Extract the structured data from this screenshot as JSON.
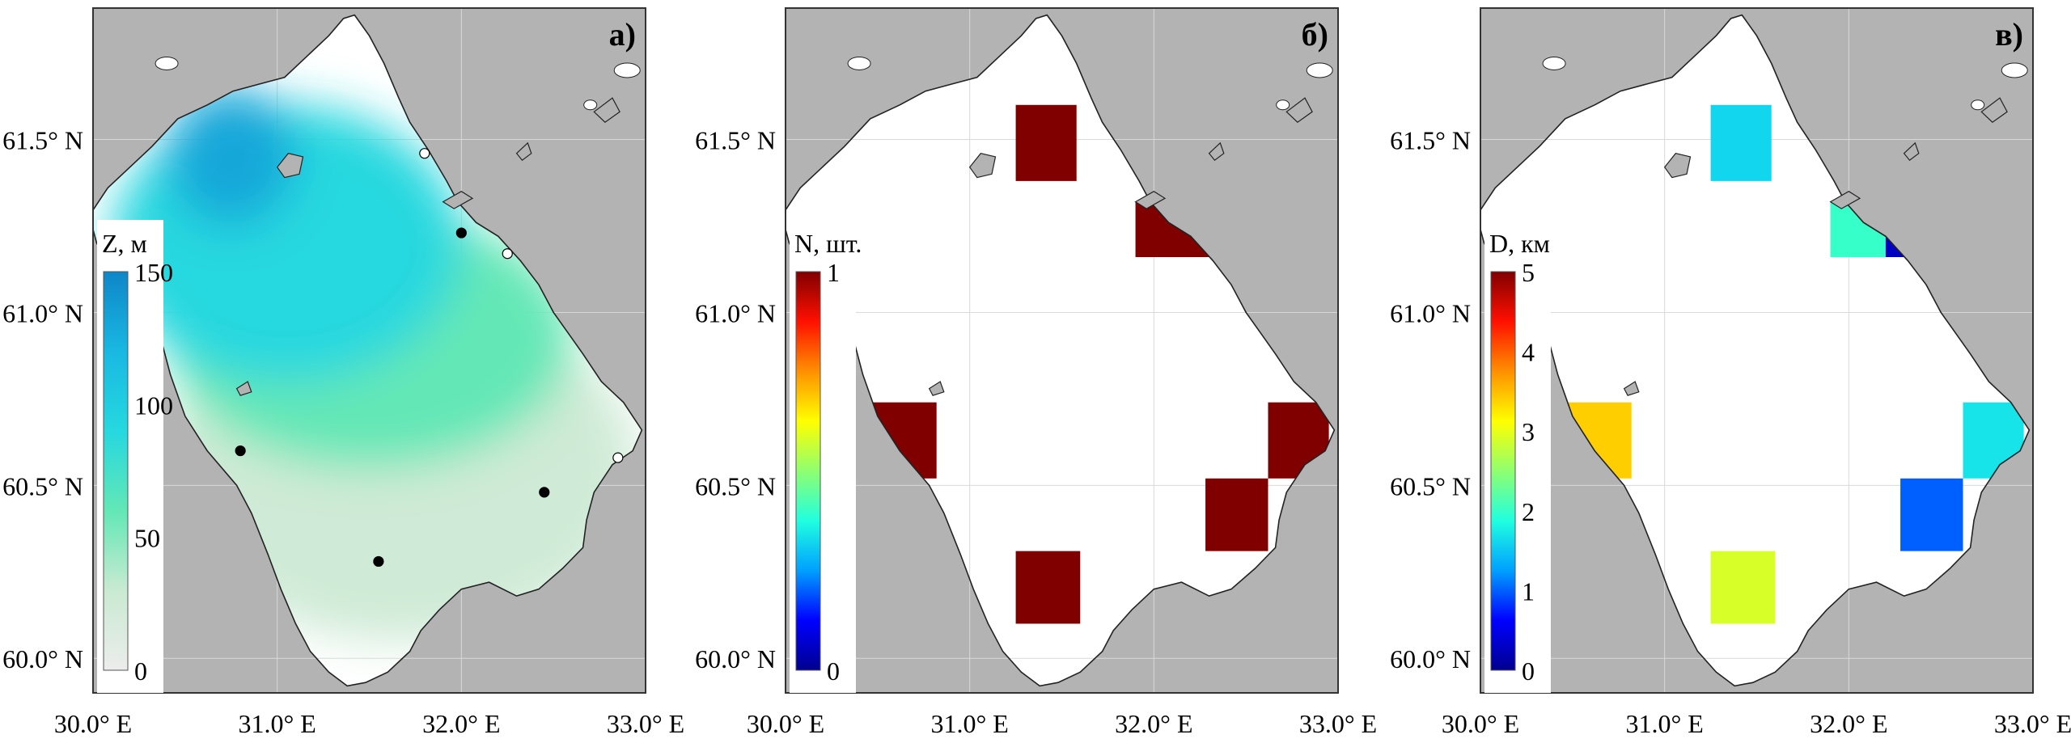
{
  "axes": {
    "y_ticks": [
      {
        "label": "61.5° N",
        "value": 61.5
      },
      {
        "label": "61.0° N",
        "value": 61.0
      },
      {
        "label": "60.5° N",
        "value": 60.5
      },
      {
        "label": "60.0° N",
        "value": 60.0
      }
    ],
    "x_ticks": [
      {
        "label": "30.0° E",
        "value": 30.0
      },
      {
        "label": "31.0° E",
        "value": 31.0
      },
      {
        "label": "32.0° E",
        "value": 32.0
      },
      {
        "label": "33.0° E",
        "value": 33.0
      }
    ],
    "lon_range": [
      30.0,
      33.0
    ],
    "lat_range": [
      59.9,
      61.88
    ]
  },
  "colors": {
    "land": "#b3b3b3",
    "water": "#ffffff",
    "coast": "#222222",
    "frame": "#333333",
    "grid": "#d9d9d9"
  },
  "panels": [
    {
      "id": "a",
      "letter": "а)",
      "colorbar": {
        "title": "Z, м",
        "tick_labels": [
          "0",
          "50",
          "100",
          "150"
        ],
        "tick_values": [
          0,
          50,
          100,
          150
        ],
        "min": 0,
        "max": 150,
        "stops": [
          "#ececec",
          "#c9ead2",
          "#63e7b6",
          "#26d8df",
          "#19b8e2",
          "#0e86c8"
        ]
      },
      "bathymetry_zones": [
        {
          "depth": 25,
          "lon": [
            30.4,
            32.95
          ],
          "lat": [
            60.05,
            61.05
          ]
        },
        {
          "depth": 60,
          "lon": [
            30.4,
            32.6
          ],
          "lat": [
            60.55,
            61.3
          ]
        },
        {
          "depth": 90,
          "lon": [
            30.1,
            32.0
          ],
          "lat": [
            60.8,
            61.6
          ]
        },
        {
          "depth": 130,
          "lon": [
            30.4,
            31.1
          ],
          "lat": [
            61.25,
            61.65
          ]
        }
      ],
      "stations": [
        {
          "lon": 32.0,
          "lat": 61.23,
          "fill": "#000000"
        },
        {
          "lon": 30.8,
          "lat": 60.6,
          "fill": "#000000"
        },
        {
          "lon": 32.45,
          "lat": 60.48,
          "fill": "#000000"
        },
        {
          "lon": 31.55,
          "lat": 60.28,
          "fill": "#000000"
        },
        {
          "lon": 31.8,
          "lat": 61.46,
          "fill": "#ffffff"
        },
        {
          "lon": 32.25,
          "lat": 61.17,
          "fill": "#ffffff"
        },
        {
          "lon": 32.85,
          "lat": 60.58,
          "fill": "#ffffff"
        }
      ]
    },
    {
      "id": "b",
      "letter": "б)",
      "colorbar": {
        "title": "N, шт.",
        "tick_labels": [
          "1",
          "0"
        ],
        "tick_values": [
          1,
          0
        ],
        "min": 0,
        "max": 1,
        "stops": [
          "#00008f",
          "#0000ff",
          "#00a0ff",
          "#20ffe0",
          "#8fff70",
          "#ffff00",
          "#ff9000",
          "#ff1000",
          "#800000"
        ]
      },
      "cells": [
        {
          "lon": [
            31.25,
            31.58
          ],
          "lat": [
            61.38,
            61.6
          ],
          "value": 1
        },
        {
          "lon": [
            31.9,
            32.4
          ],
          "lat": [
            61.16,
            61.32
          ],
          "value": 1
        },
        {
          "lon": [
            30.45,
            30.82
          ],
          "lat": [
            60.52,
            60.74
          ],
          "value": 1
        },
        {
          "lon": [
            32.62,
            32.95
          ],
          "lat": [
            60.52,
            60.74
          ],
          "value": 1
        },
        {
          "lon": [
            32.28,
            32.62
          ],
          "lat": [
            60.31,
            60.52
          ],
          "value": 1
        },
        {
          "lon": [
            31.25,
            31.6
          ],
          "lat": [
            60.1,
            60.31
          ],
          "value": 1
        }
      ]
    },
    {
      "id": "c",
      "letter": "в)",
      "colorbar": {
        "title": "D, км",
        "tick_labels": [
          "5",
          "4",
          "3",
          "2",
          "1",
          "0"
        ],
        "tick_values": [
          5,
          4,
          3,
          2,
          1,
          0
        ],
        "min": 0,
        "max": 5,
        "stops": [
          "#00008f",
          "#0000ff",
          "#00a0ff",
          "#20ffe0",
          "#8fff70",
          "#ffff00",
          "#ff9000",
          "#ff1000",
          "#800000"
        ]
      },
      "cells": [
        {
          "lon": [
            31.25,
            31.58
          ],
          "lat": [
            61.38,
            61.6
          ],
          "value": 1.6
        },
        {
          "lon": [
            31.9,
            32.2
          ],
          "lat": [
            61.16,
            61.32
          ],
          "value": 2.0
        },
        {
          "lon": [
            32.2,
            32.4
          ],
          "lat": [
            61.16,
            61.22
          ],
          "value": 0.3
        },
        {
          "lon": [
            30.45,
            30.82
          ],
          "lat": [
            60.52,
            60.74
          ],
          "value": 3.4
        },
        {
          "lon": [
            32.62,
            32.95
          ],
          "lat": [
            60.52,
            60.74
          ],
          "value": 1.7
        },
        {
          "lon": [
            32.28,
            32.62
          ],
          "lat": [
            60.31,
            60.52
          ],
          "value": 1.0
        },
        {
          "lon": [
            31.25,
            31.6
          ],
          "lat": [
            60.1,
            60.31
          ],
          "value": 2.9
        }
      ]
    }
  ]
}
